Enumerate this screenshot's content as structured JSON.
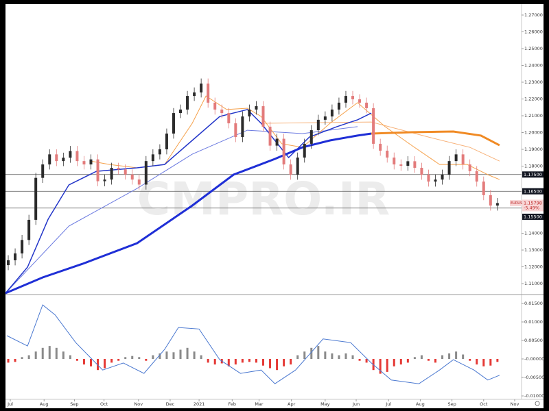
{
  "chart_data": [
    {
      "type": "candlestick",
      "symbol": "EURUSD",
      "last_price_label": "1.15798",
      "change": "-5.49%",
      "watermark": "CMPRO.IR",
      "up_color": "#2b2b2b",
      "down_color": "#e37b7b",
      "open": [
        1.121,
        1.1239,
        1.128,
        1.136,
        1.148,
        1.173,
        1.181,
        1.187,
        1.183,
        1.185,
        1.189,
        1.183,
        1.181,
        1.184,
        1.171,
        1.172,
        1.179,
        1.178,
        1.175,
        1.172,
        1.169,
        1.183,
        1.187,
        1.19,
        1.1994,
        1.2116,
        1.2137,
        1.2218,
        1.2239,
        1.2292,
        1.2178,
        1.2137,
        1.2116,
        1.2055,
        1.1973,
        1.2096,
        1.2137,
        1.2157,
        1.2035,
        1.1922,
        1.1963,
        1.181,
        1.1749,
        1.1851,
        1.1933,
        1.2014,
        1.2076,
        1.2096,
        1.2137,
        1.2178,
        1.2218,
        1.2198,
        1.2178,
        1.2145,
        1.1933,
        1.1892,
        1.1851,
        1.181,
        1.1802,
        1.1829,
        1.179,
        1.1749,
        1.1708,
        1.172,
        1.1749,
        1.183,
        1.187,
        1.181,
        1.177,
        1.1708,
        1.1627,
        1.1565
      ],
      "high": [
        1.1269,
        1.131,
        1.139,
        1.151,
        1.176,
        1.184,
        1.19,
        1.19,
        1.188,
        1.192,
        1.192,
        1.186,
        1.187,
        1.187,
        1.175,
        1.182,
        1.182,
        1.181,
        1.178,
        1.175,
        1.186,
        1.19,
        1.193,
        1.2024,
        1.2146,
        1.2167,
        1.2248,
        1.2269,
        1.2322,
        1.2322,
        1.2208,
        1.2167,
        1.2146,
        1.2085,
        1.2126,
        1.2167,
        1.2187,
        1.2187,
        1.2065,
        1.1993,
        1.1993,
        1.184,
        1.1881,
        1.1963,
        1.2044,
        1.2106,
        1.2126,
        1.2167,
        1.2208,
        1.2248,
        1.2248,
        1.2228,
        1.2208,
        1.2175,
        1.1963,
        1.1922,
        1.1881,
        1.184,
        1.1859,
        1.1859,
        1.182,
        1.1779,
        1.175,
        1.1779,
        1.186,
        1.19,
        1.19,
        1.184,
        1.18,
        1.1738,
        1.1657,
        1.161
      ],
      "low": [
        1.118,
        1.1209,
        1.125,
        1.133,
        1.145,
        1.17,
        1.178,
        1.18,
        1.18,
        1.182,
        1.18,
        1.178,
        1.178,
        1.168,
        1.168,
        1.169,
        1.175,
        1.172,
        1.169,
        1.166,
        1.166,
        1.18,
        1.184,
        1.187,
        1.1964,
        1.2086,
        1.2107,
        1.2188,
        1.2209,
        1.2148,
        1.2107,
        1.2086,
        1.2025,
        1.1943,
        1.1943,
        1.2066,
        1.2107,
        1.2005,
        1.1892,
        1.1892,
        1.178,
        1.1719,
        1.1719,
        1.1821,
        1.1903,
        1.1984,
        1.2046,
        1.2066,
        1.2107,
        1.2148,
        1.2168,
        1.2148,
        1.2115,
        1.1903,
        1.1862,
        1.1821,
        1.178,
        1.1772,
        1.1772,
        1.176,
        1.1719,
        1.1678,
        1.1678,
        1.169,
        1.1719,
        1.18,
        1.178,
        1.174,
        1.1678,
        1.1597,
        1.1535,
        1.1535
      ],
      "close": [
        1.1239,
        1.128,
        1.136,
        1.148,
        1.173,
        1.181,
        1.187,
        1.183,
        1.185,
        1.189,
        1.183,
        1.181,
        1.184,
        1.171,
        1.172,
        1.179,
        1.178,
        1.175,
        1.172,
        1.169,
        1.183,
        1.187,
        1.19,
        1.1994,
        1.2116,
        1.2137,
        1.2218,
        1.2239,
        1.2292,
        1.2178,
        1.2137,
        1.2116,
        1.2055,
        1.1973,
        1.2096,
        1.2137,
        1.2157,
        1.2035,
        1.1922,
        1.1963,
        1.181,
        1.1749,
        1.1851,
        1.1933,
        1.2014,
        1.2076,
        1.2096,
        1.2137,
        1.2178,
        1.2218,
        1.2198,
        1.2178,
        1.2145,
        1.1933,
        1.1892,
        1.1851,
        1.181,
        1.1802,
        1.1829,
        1.179,
        1.1749,
        1.1708,
        1.172,
        1.1749,
        1.183,
        1.187,
        1.181,
        1.177,
        1.1708,
        1.1627,
        1.1565,
        1.15798
      ],
      "lines": [
        {
          "color": "#6a79e0",
          "width": 1,
          "x": [
            -0.4,
            8.8,
            18.7,
            26.7,
            34.7,
            42.7,
            50.7
          ],
          "values": [
            1.1043,
            1.1443,
            1.1667,
            1.1871,
            1.2014,
            1.1994,
            1.2035
          ]
        },
        {
          "color": "#f7b27a",
          "width": 1,
          "x": [
            36.7,
            52.7,
            61,
            67,
            71.3
          ],
          "values": [
            1.2055,
            1.2063,
            1.1973,
            1.1912,
            1.183
          ]
        },
        {
          "color": "#f5a04a",
          "width": 1,
          "x": [
            12,
            14.7,
            18.7,
            22.7,
            26.7,
            28.7,
            31.7,
            34.7,
            36.7,
            39.7,
            42.7,
            46.7,
            50.7,
            54.7,
            58.6,
            62.6,
            66.6,
            69.6,
            71.3
          ],
          "values": [
            1.183,
            1.181,
            1.179,
            1.181,
            1.2055,
            1.2218,
            1.2137,
            1.2145,
            1.2096,
            1.1933,
            1.1912,
            1.2055,
            1.2178,
            1.2035,
            1.1922,
            1.181,
            1.181,
            1.1749,
            1.172
          ]
        },
        {
          "color": "#2336c9",
          "width": 1.5,
          "x": [
            -0.4,
            2.8,
            5.8,
            8.8,
            12.8,
            18.7,
            22.7,
            26.7,
            30.7,
            34.7,
            36.7,
            40.7,
            43.7,
            47.7,
            50.7,
            52.7
          ],
          "values": [
            1.1043,
            1.1198,
            1.1484,
            1.1688,
            1.1769,
            1.179,
            1.181,
            1.1953,
            1.2096,
            1.2137,
            1.2055,
            1.1851,
            1.1973,
            1.2035,
            1.2076,
            1.2116
          ]
        },
        {
          "color": "#1f2fd6",
          "width": 3,
          "x": [
            -0.4,
            5,
            10.8,
            18.7,
            26.7,
            32.7,
            38.7,
            42.7,
            46.7,
            50.7,
            52.7
          ],
          "values": [
            1.1043,
            1.1137,
            1.1218,
            1.1341,
            1.1565,
            1.1749,
            1.1843,
            1.1912,
            1.1953,
            1.1982,
            1.1994
          ]
        },
        {
          "color": "#f08a24",
          "width": 3,
          "x": [
            52.7,
            58.6,
            64.6,
            68.6,
            71.3
          ],
          "values": [
            1.1994,
            1.2002,
            1.2006,
            1.1982,
            1.1924
          ]
        }
      ],
      "levels": [
        {
          "value": 1.175,
          "label": "1.17500"
        },
        {
          "value": 1.165,
          "label": "1.16500"
        },
        {
          "value": 1.155,
          "label": "1.15500"
        }
      ],
      "xlim": [
        -0.4,
        74.5
      ],
      "ylim": [
        1.1043,
        1.2757
      ],
      "yticks": [
        {
          "value": 1.27,
          "label": "1.27000"
        },
        {
          "value": 1.26,
          "label": "1.26000"
        },
        {
          "value": 1.25,
          "label": "1.25000"
        },
        {
          "value": 1.24,
          "label": "1.24000"
        },
        {
          "value": 1.23,
          "label": "1.23000"
        },
        {
          "value": 1.22,
          "label": "1.22000"
        },
        {
          "value": 1.21,
          "label": "1.21000"
        },
        {
          "value": 1.2,
          "label": "1.20000"
        },
        {
          "value": 1.19,
          "label": "1.19000"
        },
        {
          "value": 1.18,
          "label": "1.18000"
        },
        {
          "value": 1.14,
          "label": "1.14000"
        },
        {
          "value": 1.13,
          "label": "1.13000"
        },
        {
          "value": 1.12,
          "label": "1.12000"
        },
        {
          "value": 1.11,
          "label": "1.11000"
        }
      ]
    },
    {
      "type": "oscillator",
      "pos_color": "#8a8a8a",
      "neg_color": "#e53935",
      "values": [
        -0.001,
        -0.0008,
        0.0005,
        0.001,
        0.002,
        0.003,
        0.0035,
        0.003,
        0.002,
        0.001,
        -0.0005,
        -0.0015,
        -0.002,
        -0.003,
        -0.0025,
        -0.001,
        -0.0005,
        0.0005,
        0.0008,
        0.0005,
        -0.0005,
        0.001,
        0.0015,
        0.002,
        0.0018,
        0.0025,
        0.003,
        0.002,
        0.001,
        -0.001,
        -0.0015,
        -0.0012,
        -0.002,
        -0.0015,
        -0.001,
        -0.0008,
        -0.001,
        -0.0018,
        -0.0025,
        -0.003,
        -0.002,
        -0.0015,
        0.001,
        0.002,
        0.003,
        0.0035,
        0.002,
        0.0015,
        0.001,
        0.0015,
        0.001,
        -0.0005,
        -0.001,
        -0.003,
        -0.004,
        -0.0035,
        -0.002,
        -0.0015,
        -0.001,
        0.0005,
        0.001,
        -0.0005,
        -0.001,
        0.001,
        0.0015,
        0.002,
        0.0012,
        -0.0005,
        -0.0015,
        -0.002,
        -0.0018,
        -0.0008
      ],
      "line": {
        "color": "#4a78d0",
        "x": [
          -0.2,
          2.8,
          5,
          6.8,
          9.8,
          13.7,
          16.7,
          19.7,
          22.7,
          24.7,
          27.7,
          30.7,
          33.7,
          36.7,
          38.7,
          41.7,
          45.7,
          49.7,
          52.7,
          55.6,
          59.6,
          62.6,
          64.6,
          67.6,
          69.6,
          71.3
        ],
        "values": [
          0.0063,
          0.0035,
          0.0146,
          0.0119,
          0.0044,
          -0.003,
          -0.0011,
          -0.0039,
          0.0026,
          0.0085,
          0.0081,
          -0.0002,
          -0.0039,
          -0.003,
          -0.0067,
          -0.003,
          0.0054,
          0.0044,
          -0.0011,
          -0.0057,
          -0.0067,
          -0.003,
          -0.0002,
          -0.003,
          -0.0057,
          -0.0044
        ]
      },
      "xlim": [
        -0.4,
        74.5
      ],
      "ylim": [
        -0.01037,
        0.01722
      ],
      "yticks": [
        {
          "value": 0.015,
          "label": "0.01500"
        },
        {
          "value": 0.01,
          "label": "0.01000"
        },
        {
          "value": 0.005,
          "label": "0.00500"
        },
        {
          "value": 0,
          "label": "-0.00000"
        },
        {
          "value": -0.005,
          "label": "-0.00500"
        },
        {
          "value": -0.01,
          "label": "-0.01000"
        }
      ],
      "xticks": [
        {
          "value": 0.3,
          "label": "Jul"
        },
        {
          "value": 5.2,
          "label": "Aug"
        },
        {
          "value": 9.6,
          "label": "Sep"
        },
        {
          "value": 13.9,
          "label": "Oct"
        },
        {
          "value": 18.9,
          "label": "Nov"
        },
        {
          "value": 23.5,
          "label": "Dec"
        },
        {
          "value": 27.7,
          "label": "2021"
        },
        {
          "value": 32.5,
          "label": "Feb"
        },
        {
          "value": 36.4,
          "label": "Mar"
        },
        {
          "value": 41.1,
          "label": "Apr"
        },
        {
          "value": 46,
          "label": "May"
        },
        {
          "value": 50.5,
          "label": "Jun"
        },
        {
          "value": 55.2,
          "label": "Jul"
        },
        {
          "value": 59.8,
          "label": "Aug"
        },
        {
          "value": 64.4,
          "label": "Sep"
        },
        {
          "value": 69,
          "label": "Oct"
        },
        {
          "value": 73.5,
          "label": "Nov"
        }
      ]
    }
  ]
}
